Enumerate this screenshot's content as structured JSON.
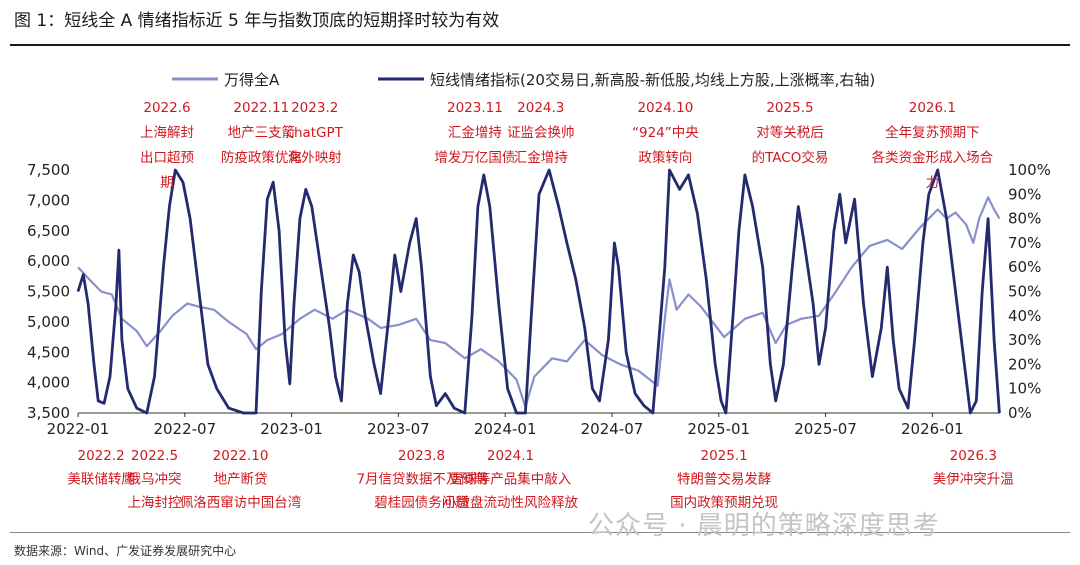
{
  "figure": {
    "title": "图 1：短线全 A 情绪指标近 5 年与指数顶底的短期择时较为有效",
    "source": "数据来源：Wind、广发证券发展研究中心",
    "watermark": "公众号 · 晨明的策略深度思考"
  },
  "colors": {
    "index": "#8890cc",
    "sentiment": "#232a6e",
    "annotation": "#d0181f",
    "axis": "#333333"
  },
  "chart_data": {
    "type": "line",
    "legend_position": "top",
    "grid": false,
    "x_ticks": [
      "2022-01",
      "2022-07",
      "2023-01",
      "2023-07",
      "2024-01",
      "2024-07",
      "2025-01",
      "2025-07",
      "2026-01"
    ],
    "x_range": [
      "2022-01",
      "2026-04"
    ],
    "y_left": {
      "range": [
        3500,
        7500
      ],
      "ticks": [
        "3,500",
        "4,000",
        "4,500",
        "5,000",
        "5,500",
        "6,000",
        "6,500",
        "7,000",
        "7,500"
      ]
    },
    "y_right": {
      "range": [
        0,
        100
      ],
      "ticks": [
        "0%",
        "10%",
        "20%",
        "30%",
        "40%",
        "50%",
        "60%",
        "70%",
        "80%",
        "90%",
        "100%"
      ]
    },
    "series": [
      {
        "name": "万得全A",
        "axis": "left",
        "points": [
          [
            "2022-01-01",
            5900
          ],
          [
            "2022-01-20",
            5700
          ],
          [
            "2022-02-10",
            5500
          ],
          [
            "2022-02-28",
            5450
          ],
          [
            "2022-03-15",
            5050
          ],
          [
            "2022-04-10",
            4850
          ],
          [
            "2022-04-27",
            4600
          ],
          [
            "2022-05-20",
            4850
          ],
          [
            "2022-06-10",
            5100
          ],
          [
            "2022-07-05",
            5300
          ],
          [
            "2022-07-25",
            5250
          ],
          [
            "2022-08-20",
            5200
          ],
          [
            "2022-09-15",
            5000
          ],
          [
            "2022-10-15",
            4800
          ],
          [
            "2022-10-31",
            4550
          ],
          [
            "2022-11-20",
            4700
          ],
          [
            "2022-12-15",
            4800
          ],
          [
            "2023-01-15",
            5050
          ],
          [
            "2023-02-10",
            5200
          ],
          [
            "2023-03-10",
            5050
          ],
          [
            "2023-04-05",
            5200
          ],
          [
            "2023-05-10",
            5050
          ],
          [
            "2023-06-01",
            4900
          ],
          [
            "2023-07-01",
            4950
          ],
          [
            "2023-07-31",
            5050
          ],
          [
            "2023-08-25",
            4700
          ],
          [
            "2023-09-20",
            4650
          ],
          [
            "2023-10-23",
            4400
          ],
          [
            "2023-11-20",
            4550
          ],
          [
            "2023-12-20",
            4350
          ],
          [
            "2024-01-20",
            4050
          ],
          [
            "2024-02-05",
            3600
          ],
          [
            "2024-02-20",
            4100
          ],
          [
            "2024-03-20",
            4400
          ],
          [
            "2024-04-15",
            4350
          ],
          [
            "2024-05-15",
            4700
          ],
          [
            "2024-06-15",
            4450
          ],
          [
            "2024-07-15",
            4300
          ],
          [
            "2024-08-15",
            4200
          ],
          [
            "2024-09-18",
            3950
          ],
          [
            "2024-09-30",
            5050
          ],
          [
            "2024-10-08",
            5700
          ],
          [
            "2024-10-20",
            5200
          ],
          [
            "2024-11-10",
            5450
          ],
          [
            "2024-12-01",
            5250
          ],
          [
            "2025-01-10",
            4750
          ],
          [
            "2025-02-15",
            5050
          ],
          [
            "2025-03-15",
            5150
          ],
          [
            "2025-04-07",
            4650
          ],
          [
            "2025-04-25",
            4950
          ],
          [
            "2025-05-20",
            5050
          ],
          [
            "2025-06-20",
            5100
          ],
          [
            "2025-07-15",
            5450
          ],
          [
            "2025-08-15",
            5900
          ],
          [
            "2025-09-15",
            6250
          ],
          [
            "2025-10-15",
            6350
          ],
          [
            "2025-11-10",
            6200
          ],
          [
            "2025-12-10",
            6550
          ],
          [
            "2026-01-10",
            6850
          ],
          [
            "2026-01-25",
            6700
          ],
          [
            "2026-02-10",
            6800
          ],
          [
            "2026-02-28",
            6600
          ],
          [
            "2026-03-10",
            6300
          ],
          [
            "2026-03-20",
            6700
          ],
          [
            "2026-04-05",
            7050
          ],
          [
            "2026-04-15",
            6850
          ],
          [
            "2026-04-24",
            6700
          ]
        ]
      },
      {
        "name": "短线情绪指标(20交易日,新高股-新低股,均线上方股,上涨概率,右轴)",
        "axis": "right",
        "points": [
          [
            "2022-01-01",
            50
          ],
          [
            "2022-01-10",
            57
          ],
          [
            "2022-01-18",
            45
          ],
          [
            "2022-01-28",
            20
          ],
          [
            "2022-02-05",
            5
          ],
          [
            "2022-02-15",
            4
          ],
          [
            "2022-02-25",
            15
          ],
          [
            "2022-03-05",
            45
          ],
          [
            "2022-03-10",
            67
          ],
          [
            "2022-03-15",
            30
          ],
          [
            "2022-03-25",
            10
          ],
          [
            "2022-04-10",
            2
          ],
          [
            "2022-04-27",
            0
          ],
          [
            "2022-05-10",
            15
          ],
          [
            "2022-05-25",
            60
          ],
          [
            "2022-06-05",
            85
          ],
          [
            "2022-06-15",
            100
          ],
          [
            "2022-06-28",
            95
          ],
          [
            "2022-07-10",
            80
          ],
          [
            "2022-07-25",
            50
          ],
          [
            "2022-08-10",
            20
          ],
          [
            "2022-08-25",
            10
          ],
          [
            "2022-09-15",
            2
          ],
          [
            "2022-10-10",
            0
          ],
          [
            "2022-10-31",
            0
          ],
          [
            "2022-11-10",
            50
          ],
          [
            "2022-11-20",
            88
          ],
          [
            "2022-11-30",
            95
          ],
          [
            "2022-12-10",
            75
          ],
          [
            "2022-12-20",
            30
          ],
          [
            "2022-12-28",
            12
          ],
          [
            "2023-01-05",
            45
          ],
          [
            "2023-01-15",
            80
          ],
          [
            "2023-01-25",
            92
          ],
          [
            "2023-02-05",
            85
          ],
          [
            "2023-02-20",
            60
          ],
          [
            "2023-03-05",
            35
          ],
          [
            "2023-03-15",
            15
          ],
          [
            "2023-03-25",
            5
          ],
          [
            "2023-04-05",
            45
          ],
          [
            "2023-04-15",
            65
          ],
          [
            "2023-04-25",
            58
          ],
          [
            "2023-05-05",
            40
          ],
          [
            "2023-05-20",
            20
          ],
          [
            "2023-06-01",
            8
          ],
          [
            "2023-06-15",
            40
          ],
          [
            "2023-06-25",
            65
          ],
          [
            "2023-07-05",
            50
          ],
          [
            "2023-07-20",
            70
          ],
          [
            "2023-07-31",
            80
          ],
          [
            "2023-08-10",
            60
          ],
          [
            "2023-08-25",
            15
          ],
          [
            "2023-09-05",
            3
          ],
          [
            "2023-09-20",
            8
          ],
          [
            "2023-10-05",
            2
          ],
          [
            "2023-10-23",
            0
          ],
          [
            "2023-11-05",
            40
          ],
          [
            "2023-11-15",
            85
          ],
          [
            "2023-11-25",
            98
          ],
          [
            "2023-12-05",
            85
          ],
          [
            "2023-12-20",
            45
          ],
          [
            "2024-01-05",
            10
          ],
          [
            "2024-01-20",
            0
          ],
          [
            "2024-02-05",
            0
          ],
          [
            "2024-02-15",
            40
          ],
          [
            "2024-02-28",
            90
          ],
          [
            "2024-03-15",
            100
          ],
          [
            "2024-03-31",
            85
          ],
          [
            "2024-04-15",
            70
          ],
          [
            "2024-04-30",
            55
          ],
          [
            "2024-05-15",
            35
          ],
          [
            "2024-05-28",
            10
          ],
          [
            "2024-06-10",
            5
          ],
          [
            "2024-06-25",
            30
          ],
          [
            "2024-07-05",
            70
          ],
          [
            "2024-07-12",
            60
          ],
          [
            "2024-07-25",
            25
          ],
          [
            "2024-08-10",
            8
          ],
          [
            "2024-08-25",
            3
          ],
          [
            "2024-09-10",
            0
          ],
          [
            "2024-09-30",
            60
          ],
          [
            "2024-10-08",
            100
          ],
          [
            "2024-10-25",
            92
          ],
          [
            "2024-11-10",
            98
          ],
          [
            "2024-11-25",
            82
          ],
          [
            "2024-12-10",
            55
          ],
          [
            "2024-12-25",
            20
          ],
          [
            "2025-01-05",
            5
          ],
          [
            "2025-01-13",
            0
          ],
          [
            "2025-01-25",
            40
          ],
          [
            "2025-02-05",
            75
          ],
          [
            "2025-02-15",
            98
          ],
          [
            "2025-02-28",
            85
          ],
          [
            "2025-03-15",
            60
          ],
          [
            "2025-03-28",
            20
          ],
          [
            "2025-04-07",
            5
          ],
          [
            "2025-04-20",
            20
          ],
          [
            "2025-05-05",
            60
          ],
          [
            "2025-05-15",
            85
          ],
          [
            "2025-05-25",
            70
          ],
          [
            "2025-06-10",
            45
          ],
          [
            "2025-06-20",
            20
          ],
          [
            "2025-07-01",
            35
          ],
          [
            "2025-07-15",
            75
          ],
          [
            "2025-07-25",
            90
          ],
          [
            "2025-08-05",
            70
          ],
          [
            "2025-08-20",
            88
          ],
          [
            "2025-09-05",
            45
          ],
          [
            "2025-09-20",
            15
          ],
          [
            "2025-10-05",
            35
          ],
          [
            "2025-10-15",
            60
          ],
          [
            "2025-10-25",
            30
          ],
          [
            "2025-11-05",
            10
          ],
          [
            "2025-11-20",
            2
          ],
          [
            "2025-12-01",
            30
          ],
          [
            "2025-12-15",
            70
          ],
          [
            "2025-12-25",
            90
          ],
          [
            "2026-01-10",
            100
          ],
          [
            "2026-01-25",
            80
          ],
          [
            "2026-02-10",
            50
          ],
          [
            "2026-02-25",
            20
          ],
          [
            "2026-03-05",
            0
          ],
          [
            "2026-03-15",
            5
          ],
          [
            "2026-03-25",
            50
          ],
          [
            "2026-04-05",
            80
          ],
          [
            "2026-04-15",
            30
          ],
          [
            "2026-04-24",
            0
          ]
        ]
      }
    ],
    "annotations_top": [
      {
        "date": "2022-06-01",
        "lines": [
          "2022.6",
          "上海解封",
          "出口超预",
          "期"
        ]
      },
      {
        "date": "2022-11-10",
        "lines": [
          "2022.11",
          "地产三支箭",
          "防疫政策优化"
        ]
      },
      {
        "date": "2023-02-10",
        "lines": [
          "2023.2",
          "chatGPT",
          "海外映射"
        ]
      },
      {
        "date": "2023-11-10",
        "lines": [
          "2023.11",
          "汇金增持",
          "增发万亿国债"
        ]
      },
      {
        "date": "2024-03-01",
        "lines": [
          "2024.3",
          "证监会换帅",
          "汇金增持"
        ]
      },
      {
        "date": "2024-10-01",
        "lines": [
          "2024.10",
          "“924”中央",
          "政策转向"
        ]
      },
      {
        "date": "2025-05-01",
        "lines": [
          "2025.5",
          "对等关税后",
          "的TACO交易"
        ]
      },
      {
        "date": "2026-01-01",
        "lines": [
          "2026.1",
          "全年复苏预期下",
          "各类资金形成入场合",
          "力"
        ]
      }
    ],
    "annotations_bottom": [
      {
        "date": "2022-02-10",
        "lines": [
          "2022.2",
          "美联储转鹰"
        ]
      },
      {
        "date": "2022-05-10",
        "lines": [
          "2022.5",
          "俄乌冲突",
          "上海封控"
        ]
      },
      {
        "date": "2022-10-05",
        "lines": [
          "2022.10",
          "地产断贷",
          "佩洛西窜访中国台湾"
        ]
      },
      {
        "date": "2023-08-10",
        "lines": [
          "2023.8",
          "7月信贷数据不及预期",
          "碧桂园债务问题"
        ]
      },
      {
        "date": "2024-01-10",
        "lines": [
          "2024.1",
          "雪球等产品集中敲入",
          "小微盘流动性风险释放"
        ]
      },
      {
        "date": "2025-01-10",
        "lines": [
          "2025.1",
          "特朗普交易发酵",
          "国内政策预期兑现"
        ]
      },
      {
        "date": "2026-03-10",
        "lines": [
          "2026.3",
          "美伊冲突升温"
        ]
      }
    ]
  }
}
